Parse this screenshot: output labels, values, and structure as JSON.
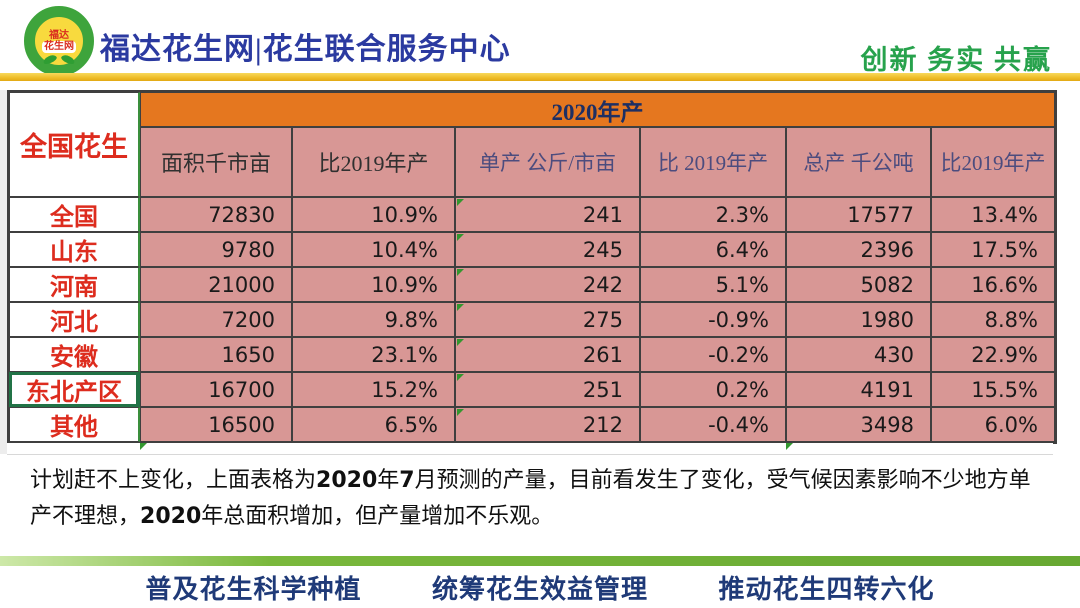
{
  "header": {
    "logo": {
      "line1": "福达",
      "line2": "花生网"
    },
    "title": "福达花生网|花生联合服务中心",
    "slogan": "创新 务实 共赢"
  },
  "table": {
    "corner_label": "全国花生",
    "year_banner": "2020年产",
    "columns": [
      "面积千市亩",
      "比2019年产",
      "单产 公斤/市亩",
      "比 2019年产",
      "总产 千公吨",
      "比2019年产"
    ],
    "rows": [
      {
        "label": "全国",
        "values": [
          "72830",
          "10.9%",
          "241",
          "2.3%",
          "17577",
          "13.4%"
        ]
      },
      {
        "label": "山东",
        "values": [
          "9780",
          "10.4%",
          "245",
          "6.4%",
          "2396",
          "17.5%"
        ]
      },
      {
        "label": "河南",
        "values": [
          "21000",
          "10.9%",
          "242",
          "5.1%",
          "5082",
          "16.6%"
        ]
      },
      {
        "label": "河北",
        "values": [
          "7200",
          "9.8%",
          "275",
          "-0.9%",
          "1980",
          "8.8%"
        ]
      },
      {
        "label": "安徽",
        "values": [
          "1650",
          "23.1%",
          "261",
          "-0.2%",
          "430",
          "22.9%"
        ]
      },
      {
        "label": "东北产区",
        "values": [
          "16700",
          "15.2%",
          "251",
          "0.2%",
          "4191",
          "15.5%"
        ]
      },
      {
        "label": "其他",
        "values": [
          "16500",
          "6.5%",
          "212",
          "-0.4%",
          "3498",
          "6.0%"
        ]
      }
    ]
  },
  "note": {
    "segments": {
      "s0": "计划赶不上变化，上面表格为",
      "s1": "2020",
      "s2": "年",
      "s3": "7",
      "s4": "月预测的产量，目前看发生了变化，受气候因素影响不少地方单产不理想，",
      "s5": "2020",
      "s6": "年总面积增加，但产量增加不乐观。"
    }
  },
  "footer": {
    "items": [
      "普及花生科学种植",
      "统筹花生效益管理",
      "推动花生四转六化"
    ]
  },
  "colors": {
    "banner_orange": "#e5771f",
    "cell_pink": "#d89795",
    "label_red": "#dd2c1e",
    "title_blue": "#2b3aa0",
    "slogan_green": "#27a24c",
    "footer_blue": "#1f3a78",
    "selection_green": "#217346",
    "gold_line": "#eebc28",
    "green_line": "#7ab83c"
  }
}
